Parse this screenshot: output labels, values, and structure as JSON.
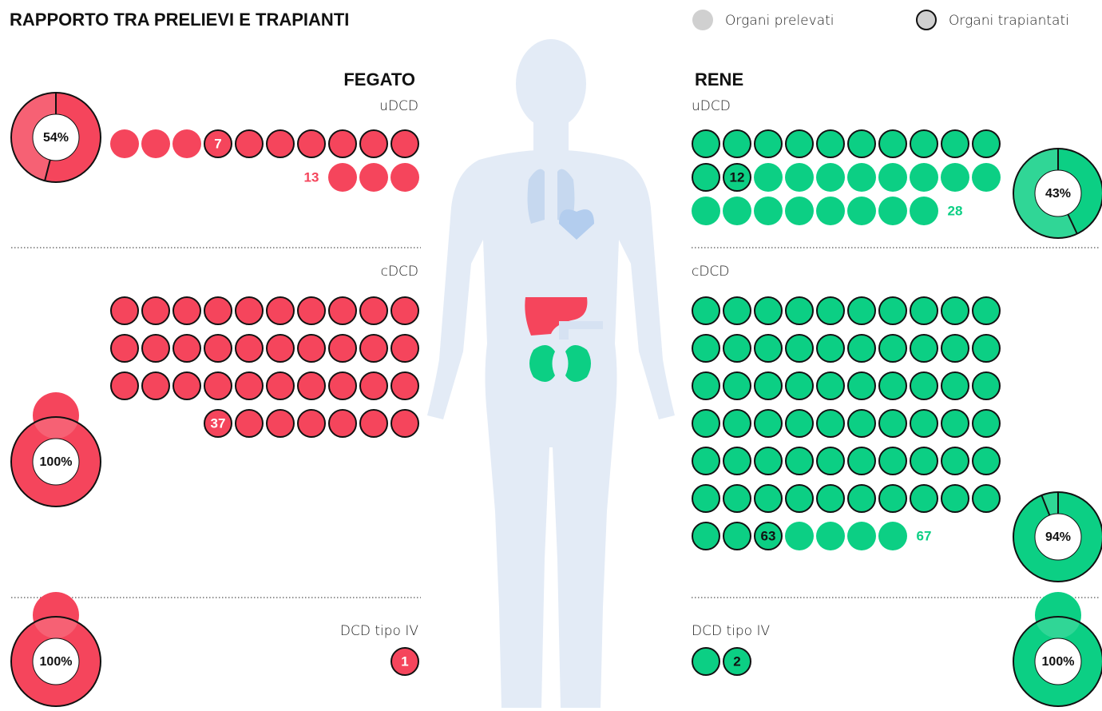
{
  "title": "RAPPORTO TRA PRELIEVI E TRAPIANTI",
  "legend": [
    "Organi prelevati",
    "Organi trapiantati"
  ],
  "organs": [
    {
      "name": "FEGATO",
      "color": "#f5455c",
      "groups": [
        {
          "label": "uDCD",
          "prelevati": 13,
          "trapiantati": 7,
          "percent": 54,
          "percent_label": "54%"
        },
        {
          "label": "cDCD",
          "prelevati": 37,
          "trapiantati": 37,
          "percent": 100,
          "percent_label": "100%"
        },
        {
          "label": "DCD tipo IV",
          "prelevati": 1,
          "trapiantati": 1,
          "percent": 100,
          "percent_label": "100%"
        }
      ]
    },
    {
      "name": "RENE",
      "color": "#0ccf84",
      "groups": [
        {
          "label": "uDCD",
          "prelevati": 28,
          "trapiantati": 12,
          "percent": 43,
          "percent_label": "43%"
        },
        {
          "label": "cDCD",
          "prelevati": 67,
          "trapiantati": 63,
          "percent": 94,
          "percent_label": "94%"
        },
        {
          "label": "DCD tipo IV",
          "prelevati": 2,
          "trapiantati": 2,
          "percent": 100,
          "percent_label": "100%"
        }
      ]
    }
  ]
}
